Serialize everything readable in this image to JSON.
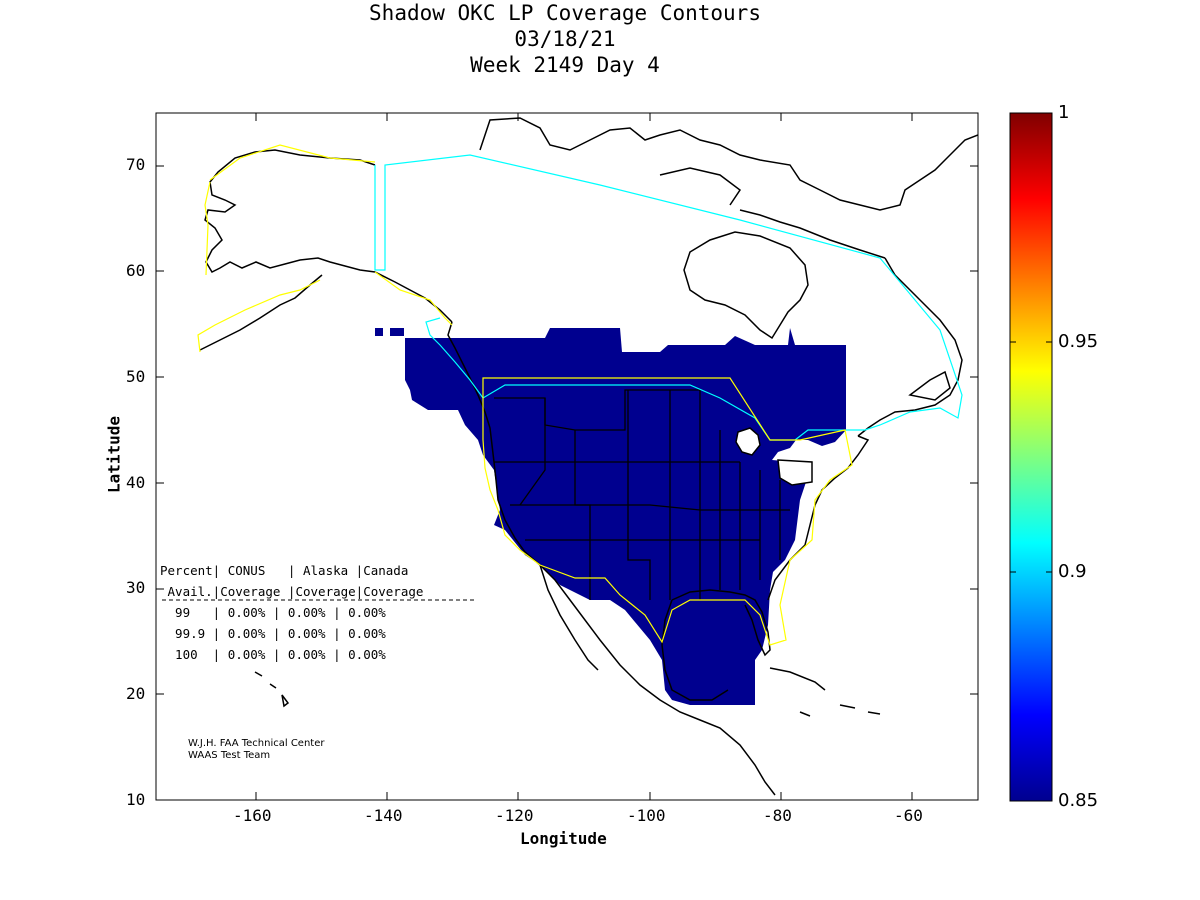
{
  "title": {
    "line1": "Shadow OKC LP Coverage Contours",
    "line2": "03/18/21",
    "line3": "Week 2149 Day 4"
  },
  "axes": {
    "xlabel": "Longitude",
    "ylabel": "Latitude",
    "xticks": [
      "-160",
      "-140",
      "-120",
      "-100",
      "-80",
      "-60"
    ],
    "yticks": [
      "10",
      "20",
      "30",
      "40",
      "50",
      "60",
      "70"
    ],
    "xlim": [
      -175,
      -50
    ],
    "ylim": [
      10,
      75
    ]
  },
  "colorbar": {
    "ticks": [
      "0.85",
      "0.9",
      "0.95",
      "1"
    ],
    "range": [
      0.85,
      1.0
    ],
    "colormap": "jet"
  },
  "coverage_fill_color": "#00008f",
  "region_colors": {
    "conus_boundary": "#ffff00",
    "canada_alaska_boundary": "#00ffff"
  },
  "table": {
    "header1": "Percent| CONUS   | Alaska |Canada",
    "header2": " Avail.|Coverage |Coverage|Coverage",
    "rows": [
      "  99   | 0.00% | 0.00% | 0.00%",
      "  99.9 | 0.00% | 0.00% | 0.00%",
      "  100  | 0.00% | 0.00% | 0.00%"
    ]
  },
  "credits": {
    "line1": "W.J.H. FAA Technical Center",
    "line2": "WAAS Test Team"
  }
}
